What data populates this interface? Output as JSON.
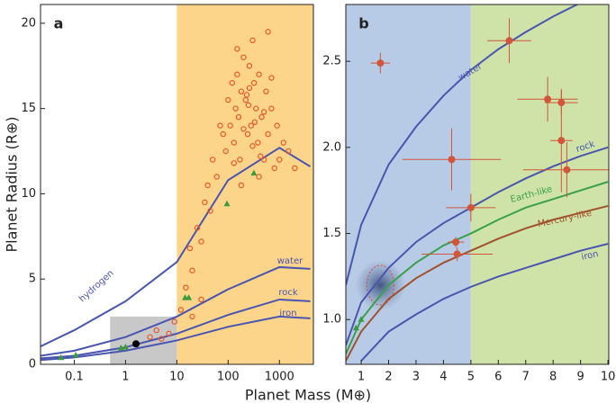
{
  "chart_data": [
    {
      "type": "scatter",
      "label": "a",
      "ylabel": "Planet Radius (R⊕)",
      "xlabel": "Planet Mass (M⊕)",
      "xscale": "log",
      "xlim": [
        0.022,
        4600
      ],
      "ylim": [
        0,
        21.1
      ],
      "xticks": [
        0.1,
        1,
        10,
        100,
        1000
      ],
      "yticks": [
        0,
        5,
        10,
        15,
        20
      ],
      "bands": [
        {
          "x0": 10,
          "x1": 4600,
          "color": "#fdd58a"
        }
      ],
      "highlight": {
        "x0": 0.5,
        "x1": 10,
        "y0": 0,
        "y1": 2.8,
        "color": "#c8c8c8"
      },
      "series": [
        {
          "kind": "line",
          "name": "hydrogen",
          "color": "#4a55b0",
          "x": [
            0.022,
            0.1,
            1,
            10,
            100,
            1000,
            4000
          ],
          "values": [
            1.05,
            2.0,
            3.7,
            6.0,
            10.8,
            12.7,
            11.6
          ]
        },
        {
          "kind": "line",
          "name": "water",
          "color": "#4a55b0",
          "x": [
            0.022,
            0.1,
            1,
            10,
            100,
            1000,
            4000
          ],
          "values": [
            0.5,
            0.8,
            1.6,
            2.8,
            4.4,
            5.7,
            5.6
          ]
        },
        {
          "kind": "line",
          "name": "rock",
          "color": "#4a55b0",
          "x": [
            0.022,
            0.1,
            1,
            10,
            100,
            1000,
            4000
          ],
          "values": [
            0.35,
            0.5,
            1.0,
            1.8,
            2.9,
            3.8,
            3.7
          ]
        },
        {
          "kind": "line",
          "name": "iron",
          "color": "#4a55b0",
          "x": [
            0.022,
            0.1,
            1,
            10,
            100,
            1000,
            4000
          ],
          "values": [
            0.25,
            0.4,
            0.8,
            1.4,
            2.2,
            2.8,
            2.7
          ]
        },
        {
          "kind": "circle",
          "color": "#e8572a",
          "x": [
            12,
            15,
            18,
            20,
            25,
            30,
            35,
            40,
            45,
            50,
            60,
            70,
            80,
            90,
            100,
            110,
            120,
            130,
            140,
            150,
            160,
            170,
            180,
            200,
            220,
            240,
            260,
            280,
            300,
            320,
            350,
            380,
            400,
            450,
            500,
            550,
            600,
            700,
            800,
            900,
            1000,
            1200,
            1500,
            2000,
            150,
            200,
            250,
            300,
            400,
            500,
            600,
            700,
            180,
            230,
            330,
            430,
            130,
            260,
            9,
            7,
            5,
            4,
            3,
            20,
            30
          ],
          "values": [
            3.2,
            4.5,
            6.8,
            5.5,
            8.0,
            7.2,
            9.5,
            10.5,
            9.0,
            12.0,
            11.0,
            14.0,
            13.5,
            12.5,
            15.5,
            14.0,
            16.5,
            13.0,
            15.0,
            17.0,
            14.5,
            12.0,
            16.0,
            18.0,
            15.5,
            13.5,
            17.5,
            14.0,
            19.0,
            16.5,
            15.0,
            13.0,
            17.0,
            14.5,
            12.0,
            16.0,
            13.5,
            15.0,
            11.5,
            14.0,
            12.0,
            13.0,
            12.5,
            11.5,
            18.5,
            13.8,
            15.2,
            12.8,
            11.0,
            14.8,
            19.5,
            16.8,
            10.5,
            15.8,
            14.2,
            12.2,
            11.8,
            16.2,
            2.5,
            1.8,
            1.5,
            2.0,
            1.6,
            2.8,
            3.8
          ]
        },
        {
          "kind": "triangle",
          "color": "#3b9a3b",
          "x": [
            0.055,
            0.107,
            0.815,
            1,
            14.5,
            17.1,
            95,
            318
          ],
          "values": [
            0.38,
            0.53,
            0.95,
            1,
            3.9,
            3.9,
            9.4,
            11.2
          ]
        },
        {
          "kind": "dot",
          "color": "#000000",
          "x": [
            1.6
          ],
          "values": [
            1.2
          ]
        }
      ]
    },
    {
      "type": "scatter",
      "label": "b",
      "xscale": "linear",
      "xlim": [
        0.44,
        10.03
      ],
      "ylim": [
        0.74,
        2.83
      ],
      "xticks": [
        1,
        2,
        3,
        4,
        5,
        6,
        7,
        8,
        9,
        10
      ],
      "yticks": [
        {
          "value": 1,
          "label": "1.0"
        },
        1.5,
        {
          "value": 2,
          "label": "2.0"
        },
        2.5
      ],
      "bands": [
        {
          "x0": 0.44,
          "x1": 5,
          "color": "#b7cbe6"
        },
        {
          "x0": 5,
          "x1": 10.03,
          "color": "#cfe3a8"
        }
      ],
      "blob": {
        "x": 1.7,
        "y": 1.2
      },
      "series": [
        {
          "kind": "line",
          "name": "water",
          "color": "#4a55b0",
          "x": [
            0.44,
            1,
            2,
            3,
            4,
            5,
            6,
            7,
            8,
            9
          ],
          "values": [
            1.2,
            1.55,
            1.9,
            2.12,
            2.3,
            2.45,
            2.57,
            2.67,
            2.76,
            2.84
          ]
        },
        {
          "kind": "line",
          "name": "rock",
          "color": "#4a55b0",
          "x": [
            0.44,
            1,
            2,
            3,
            4,
            5,
            6,
            7,
            8,
            9,
            10
          ],
          "values": [
            0.85,
            1.1,
            1.3,
            1.45,
            1.56,
            1.65,
            1.74,
            1.82,
            1.89,
            1.95,
            2.0
          ]
        },
        {
          "kind": "line",
          "name": "Earth-like",
          "color": "#3aa04a",
          "x": [
            0.44,
            1,
            2,
            3,
            4,
            5,
            6,
            7,
            8,
            9,
            10
          ],
          "values": [
            0.8,
            1.0,
            1.2,
            1.33,
            1.43,
            1.5,
            1.58,
            1.65,
            1.7,
            1.75,
            1.8
          ]
        },
        {
          "kind": "line",
          "name": "Mercury-like",
          "color": "#a0522d",
          "x": [
            0.44,
            1,
            2,
            3,
            4,
            5,
            6,
            7,
            8,
            9,
            10
          ],
          "values": [
            0.76,
            0.93,
            1.12,
            1.24,
            1.33,
            1.4,
            1.47,
            1.53,
            1.58,
            1.62,
            1.66
          ]
        },
        {
          "kind": "line",
          "name": "iron",
          "color": "#4a55b0",
          "x": [
            1,
            2,
            3,
            4,
            5,
            6,
            7,
            8,
            9,
            10
          ],
          "values": [
            0.76,
            0.93,
            1.03,
            1.12,
            1.19,
            1.25,
            1.3,
            1.35,
            1.4,
            1.44
          ]
        },
        {
          "kind": "errorbar",
          "color": "#d2553a",
          "x": [
            1.7,
            6.4,
            7.8,
            8.3,
            8.3,
            8.5,
            4.3,
            5.0,
            4.45,
            4.5
          ],
          "values": [
            2.49,
            2.62,
            2.28,
            2.26,
            2.04,
            1.87,
            1.93,
            1.65,
            1.45,
            1.38
          ],
          "xerr": [
            0.35,
            0.8,
            1.1,
            0.6,
            0.4,
            1.6,
            1.8,
            0.9,
            0.3,
            1.3
          ],
          "yerr": [
            0.06,
            0.13,
            0.13,
            0.07,
            0.3,
            0.16,
            0.18,
            0.08,
            0.03,
            0.04
          ]
        },
        {
          "kind": "triangle",
          "color": "#3b9a3b",
          "x": [
            0.815,
            1
          ],
          "values": [
            0.95,
            1
          ]
        }
      ]
    }
  ]
}
